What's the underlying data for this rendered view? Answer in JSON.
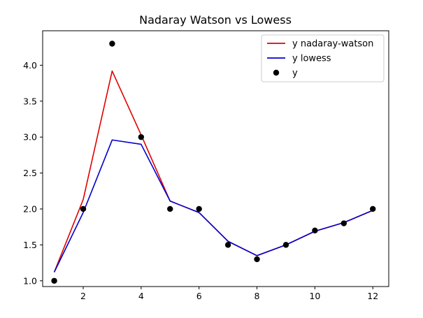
{
  "chart_data": {
    "type": "line",
    "title": "Nadaray Watson vs Lowess",
    "xlabel": "",
    "ylabel": "",
    "xlim": [
      0.6,
      12.55
    ],
    "ylim": [
      0.92,
      4.48
    ],
    "xticks": [
      2,
      4,
      6,
      8,
      10,
      12
    ],
    "yticks": [
      1.0,
      1.5,
      2.0,
      2.5,
      3.0,
      3.5,
      4.0
    ],
    "xtick_labels": [
      "2",
      "4",
      "6",
      "8",
      "10",
      "12"
    ],
    "ytick_labels": [
      "1.0",
      "1.5",
      "2.0",
      "2.5",
      "3.0",
      "3.5",
      "4.0"
    ],
    "grid": false,
    "legend_position": "top-right",
    "x": [
      1,
      2,
      3,
      4,
      5,
      6,
      7,
      8,
      9,
      10,
      11,
      12
    ],
    "series": [
      {
        "name": "y nadaray-watson",
        "kind": "line",
        "color": "#e00000",
        "values": [
          1.12,
          2.13,
          3.92,
          3.03,
          2.11,
          1.95,
          1.55,
          1.35,
          1.5,
          1.69,
          1.81,
          1.98
        ]
      },
      {
        "name": "y lowess",
        "kind": "line",
        "color": "#0000cc",
        "values": [
          1.12,
          1.95,
          2.96,
          2.9,
          2.11,
          1.95,
          1.55,
          1.35,
          1.5,
          1.69,
          1.81,
          1.98
        ]
      },
      {
        "name": "y",
        "kind": "scatter",
        "color": "#000000",
        "values": [
          1.0,
          2.0,
          4.3,
          3.0,
          2.0,
          2.0,
          1.5,
          1.3,
          1.5,
          1.7,
          1.8,
          2.0
        ]
      }
    ]
  }
}
